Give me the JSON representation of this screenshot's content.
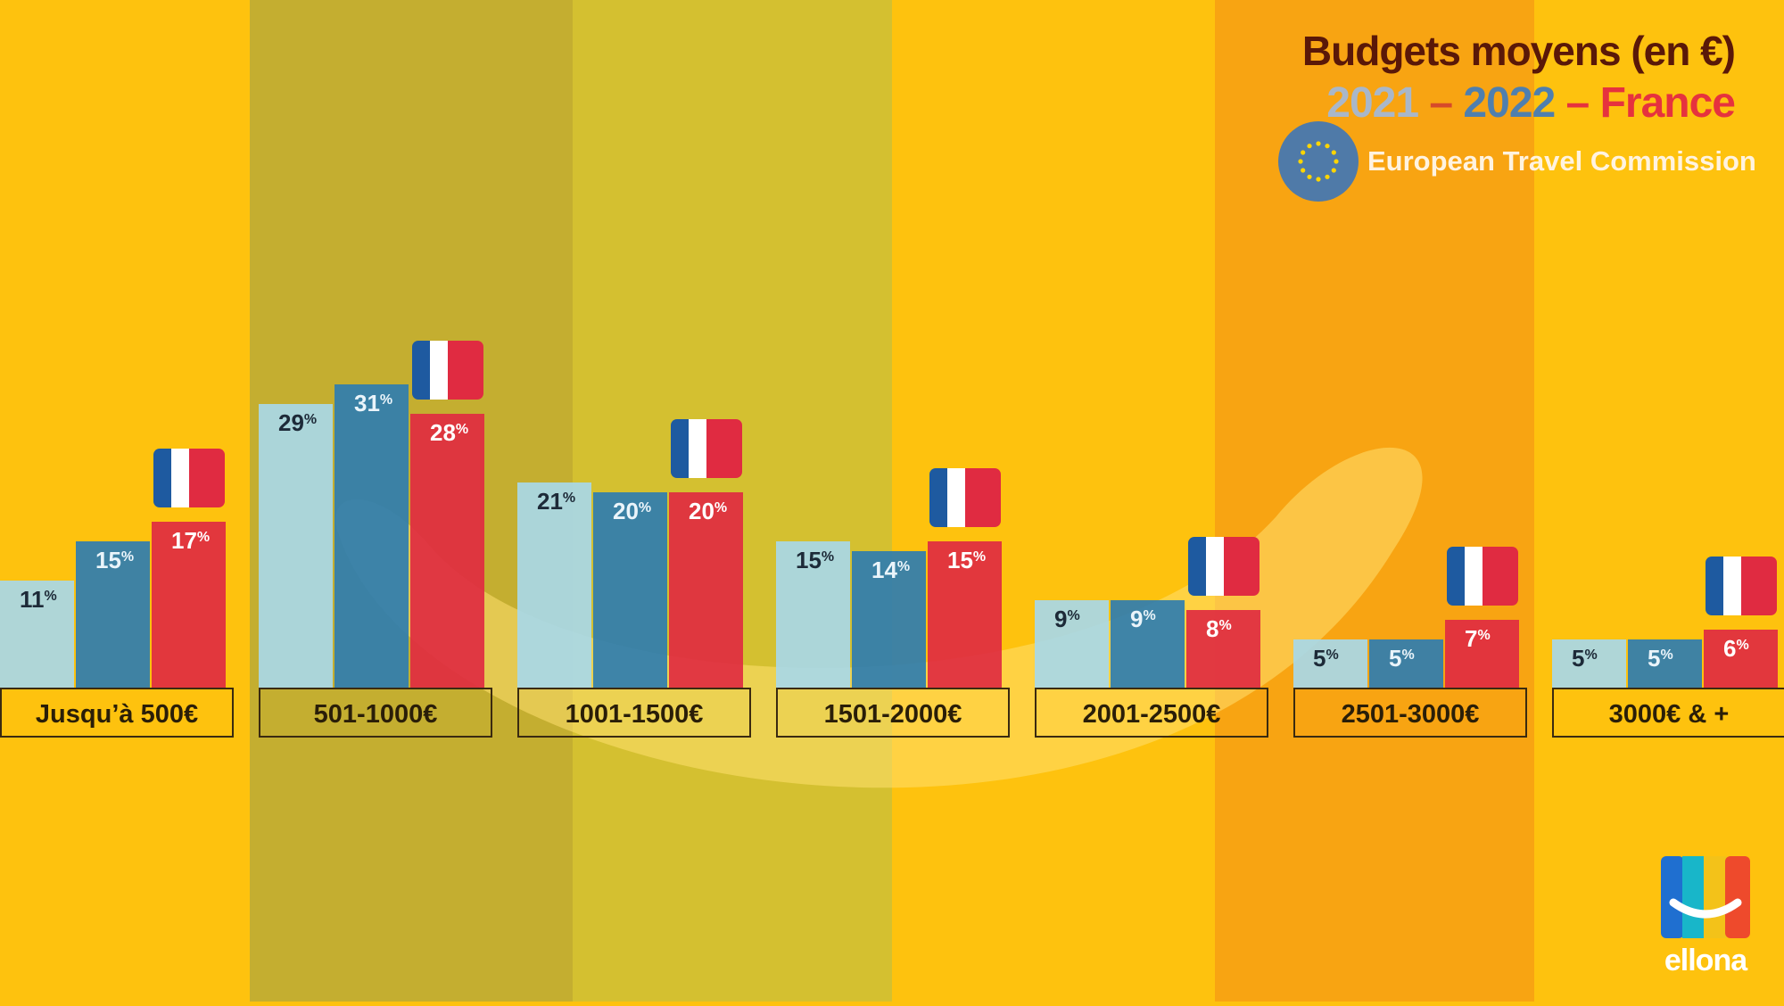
{
  "header": {
    "title": "Budgets moyens (en €)",
    "year1": "2021",
    "sep1": "–",
    "year2": "2022",
    "sep2": "–",
    "country": "France",
    "source": "European Travel Commission"
  },
  "logo": {
    "text": "ellona"
  },
  "colors": {
    "series_2021": "#a8d8e8",
    "series_2022": "#2f7db0",
    "series_france": "#e02b41",
    "background": "#FEC20E"
  },
  "chart_data": {
    "type": "bar",
    "title": "Budgets moyens (en €)",
    "categories": [
      "Jusqu’à 500€",
      "501-1000€",
      "1001-1500€",
      "1501-2000€",
      "2001-2500€",
      "2501-3000€",
      "3000€ & +"
    ],
    "series": [
      {
        "name": "2021",
        "values": [
          11,
          29,
          21,
          15,
          9,
          5,
          5
        ]
      },
      {
        "name": "2022",
        "values": [
          15,
          31,
          20,
          14,
          9,
          5,
          5
        ]
      },
      {
        "name": "France",
        "values": [
          17,
          28,
          20,
          15,
          8,
          7,
          6
        ]
      }
    ],
    "value_suffix": "%",
    "ylim": [
      0,
      35
    ],
    "legend": "none",
    "grid": false
  }
}
